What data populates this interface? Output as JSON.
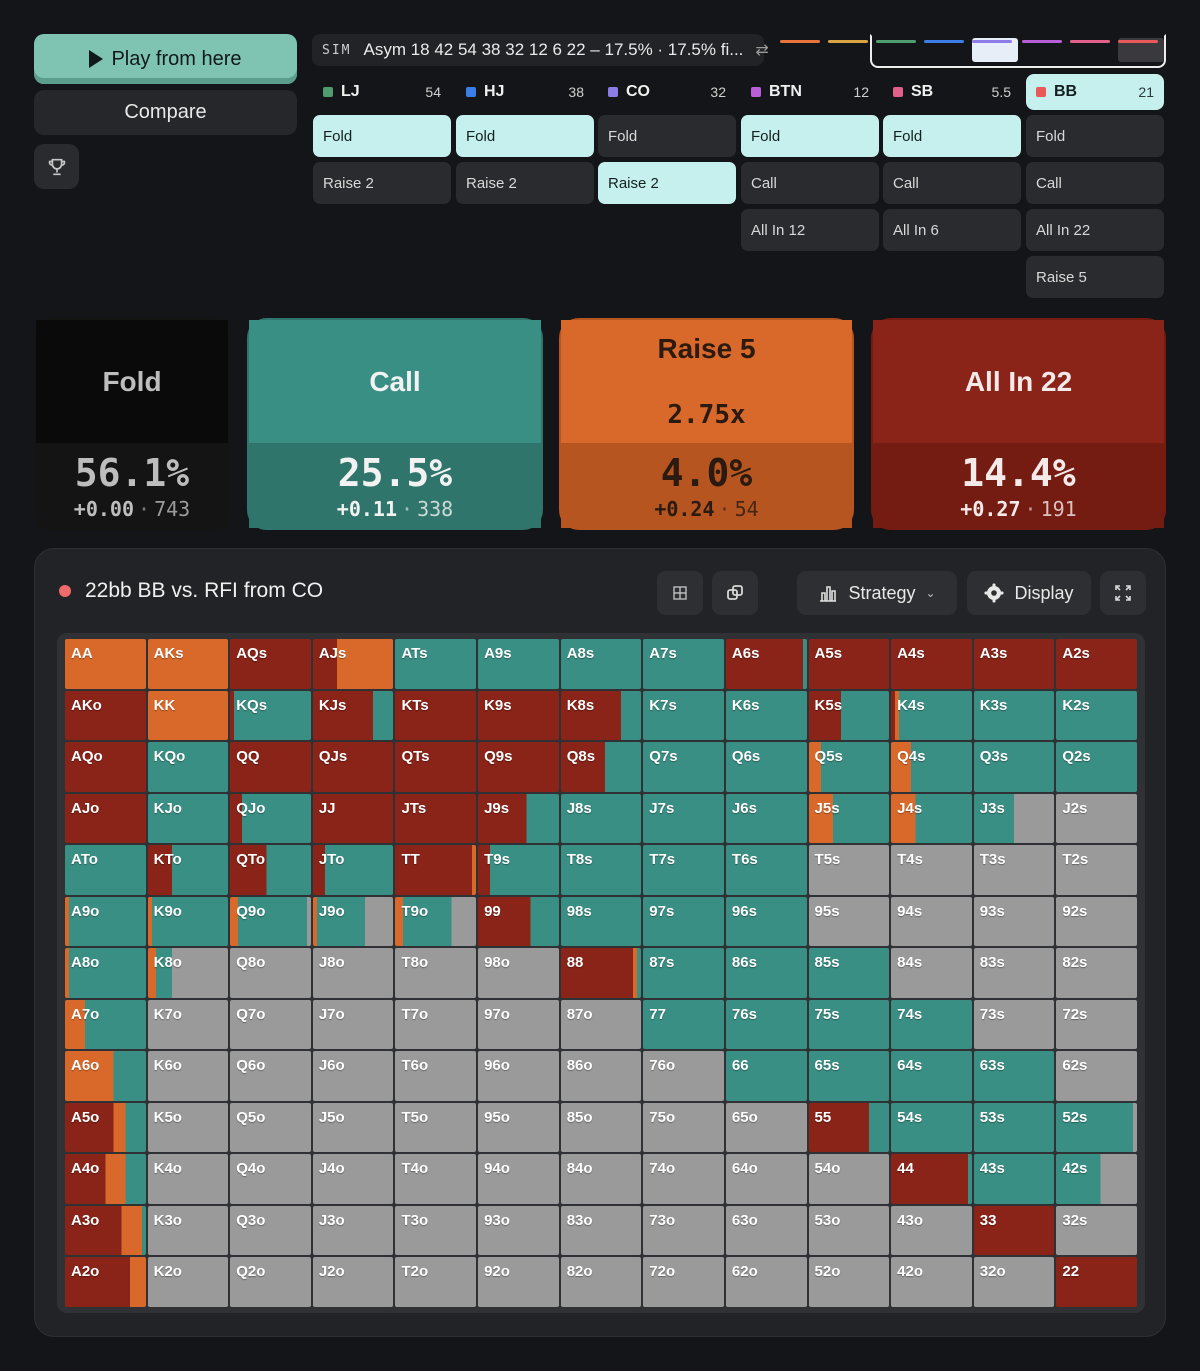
{
  "left": {
    "play_label": "Play from here",
    "compare_label": "Compare"
  },
  "sim": {
    "tag": "SIM",
    "text": "Asym 18 42 54 38 32 12 6 22 – 17.5% · 17.5% fi..."
  },
  "positions": [
    {
      "name": "LJ",
      "stack": "54",
      "color": "#4f9d6f",
      "active": false,
      "actions": [
        {
          "label": "Fold",
          "selected": true
        },
        {
          "label": "Raise 2",
          "selected": false
        }
      ]
    },
    {
      "name": "HJ",
      "stack": "38",
      "color": "#3b7ee6",
      "active": false,
      "actions": [
        {
          "label": "Fold",
          "selected": true
        },
        {
          "label": "Raise 2",
          "selected": false
        }
      ]
    },
    {
      "name": "CO",
      "stack": "32",
      "color": "#8d7ce8",
      "active": false,
      "actions": [
        {
          "label": "Fold",
          "selected": false
        },
        {
          "label": "Raise 2",
          "selected": true
        }
      ]
    },
    {
      "name": "BTN",
      "stack": "12",
      "color": "#b85fd8",
      "active": false,
      "actions": [
        {
          "label": "Fold",
          "selected": true
        },
        {
          "label": "Call",
          "selected": false
        },
        {
          "label": "All In 12",
          "selected": false
        }
      ]
    },
    {
      "name": "SB",
      "stack": "5.5",
      "color": "#e0608a",
      "active": false,
      "actions": [
        {
          "label": "Fold",
          "selected": true
        },
        {
          "label": "Call",
          "selected": false
        },
        {
          "label": "All In 6",
          "selected": false
        }
      ]
    },
    {
      "name": "BB",
      "stack": "21",
      "color": "#e85a5a",
      "active": true,
      "actions": [
        {
          "label": "Fold",
          "selected": false
        },
        {
          "label": "Call",
          "selected": false
        },
        {
          "label": "All In 22",
          "selected": false
        },
        {
          "label": "Raise 5",
          "selected": false
        }
      ]
    }
  ],
  "strip_colors": [
    "#e8743b",
    "#d9a441",
    "#4f9d6f",
    "#3b7ee6",
    "#8d7ce8",
    "#b85fd8",
    "#e0608a",
    "#e85a5a"
  ],
  "summary": [
    {
      "title": "Fold",
      "pct": "56.1%",
      "ev": "+0.00",
      "count": "743",
      "top_color": "#0a0a0a",
      "bottom_color": "#141414",
      "text_color": "#bdbdbd"
    },
    {
      "title": "Call",
      "pct": "25.5%",
      "ev": "+0.11",
      "count": "338",
      "top_color": "#3a8f84",
      "bottom_color": "#2f756c",
      "text_color": "#f2f2f2"
    },
    {
      "title": "Raise 5\n2.75x",
      "pct": "4.0%",
      "ev": "+0.24",
      "count": "54",
      "top_color": "#d9692a",
      "bottom_color": "#b65520",
      "text_color": "#2a1a10"
    },
    {
      "title": "All In 22",
      "pct": "14.4%",
      "ev": "+0.27",
      "count": "191",
      "top_color": "#8a2318",
      "bottom_color": "#751c12",
      "text_color": "#f5eaea"
    }
  ],
  "panel": {
    "title": "22bb BB vs. RFI from CO",
    "strategy_label": "Strategy",
    "display_label": "Display"
  },
  "colors": {
    "allin": "#8a2318",
    "raise": "#d9692a",
    "call": "#3a8f84",
    "fold": "#9a9a9a"
  },
  "matrix": {
    "hands": [
      [
        "AA",
        "AKs",
        "AQs",
        "AJs",
        "ATs",
        "A9s",
        "A8s",
        "A7s",
        "A6s",
        "A5s",
        "A4s",
        "A3s",
        "A2s"
      ],
      [
        "AKo",
        "KK",
        "KQs",
        "KJs",
        "KTs",
        "K9s",
        "K8s",
        "K7s",
        "K6s",
        "K5s",
        "K4s",
        "K3s",
        "K2s"
      ],
      [
        "AQo",
        "KQo",
        "QQ",
        "QJs",
        "QTs",
        "Q9s",
        "Q8s",
        "Q7s",
        "Q6s",
        "Q5s",
        "Q4s",
        "Q3s",
        "Q2s"
      ],
      [
        "AJo",
        "KJo",
        "QJo",
        "JJ",
        "JTs",
        "J9s",
        "J8s",
        "J7s",
        "J6s",
        "J5s",
        "J4s",
        "J3s",
        "J2s"
      ],
      [
        "ATo",
        "KTo",
        "QTo",
        "JTo",
        "TT",
        "T9s",
        "T8s",
        "T7s",
        "T6s",
        "T5s",
        "T4s",
        "T3s",
        "T2s"
      ],
      [
        "A9o",
        "K9o",
        "Q9o",
        "J9o",
        "T9o",
        "99",
        "98s",
        "97s",
        "96s",
        "95s",
        "94s",
        "93s",
        "92s"
      ],
      [
        "A8o",
        "K8o",
        "Q8o",
        "J8o",
        "T8o",
        "98o",
        "88",
        "87s",
        "86s",
        "85s",
        "84s",
        "83s",
        "82s"
      ],
      [
        "A7o",
        "K7o",
        "Q7o",
        "J7o",
        "T7o",
        "97o",
        "87o",
        "77",
        "76s",
        "75s",
        "74s",
        "73s",
        "72s"
      ],
      [
        "A6o",
        "K6o",
        "Q6o",
        "J6o",
        "T6o",
        "96o",
        "86o",
        "76o",
        "66",
        "65s",
        "64s",
        "63s",
        "62s"
      ],
      [
        "A5o",
        "K5o",
        "Q5o",
        "J5o",
        "T5o",
        "95o",
        "85o",
        "75o",
        "65o",
        "55",
        "54s",
        "53s",
        "52s"
      ],
      [
        "A4o",
        "K4o",
        "Q4o",
        "J4o",
        "T4o",
        "94o",
        "84o",
        "74o",
        "64o",
        "54o",
        "44",
        "43s",
        "42s"
      ],
      [
        "A3o",
        "K3o",
        "Q3o",
        "J3o",
        "T3o",
        "93o",
        "83o",
        "73o",
        "63o",
        "53o",
        "43o",
        "33",
        "32s"
      ],
      [
        "A2o",
        "K2o",
        "Q2o",
        "J2o",
        "T2o",
        "92o",
        "82o",
        "72o",
        "62o",
        "52o",
        "42o",
        "32o",
        "22"
      ]
    ],
    "mix_order": [
      "allin",
      "raise",
      "call",
      "fold"
    ],
    "mixes": [
      [
        [
          0,
          1,
          0,
          0
        ],
        [
          0,
          1,
          0,
          0
        ],
        [
          1,
          0,
          0,
          0
        ],
        [
          0.3,
          0.7,
          0,
          0
        ],
        [
          0,
          0,
          1,
          0
        ],
        [
          0,
          0,
          1,
          0
        ],
        [
          0,
          0,
          1,
          0
        ],
        [
          0,
          0,
          1,
          0
        ],
        [
          0.95,
          0,
          0.05,
          0
        ],
        [
          1,
          0,
          0,
          0
        ],
        [
          1,
          0,
          0,
          0
        ],
        [
          1,
          0,
          0,
          0
        ],
        [
          1,
          0,
          0,
          0
        ]
      ],
      [
        [
          1,
          0,
          0,
          0
        ],
        [
          0,
          1,
          0,
          0
        ],
        [
          0.05,
          0,
          0.95,
          0
        ],
        [
          0.75,
          0,
          0.25,
          0
        ],
        [
          1,
          0,
          0,
          0
        ],
        [
          1,
          0,
          0,
          0
        ],
        [
          0.75,
          0,
          0.25,
          0
        ],
        [
          0,
          0,
          1,
          0
        ],
        [
          0,
          0,
          1,
          0
        ],
        [
          0.4,
          0,
          0.6,
          0
        ],
        [
          0.05,
          0.05,
          0.9,
          0
        ],
        [
          0,
          0,
          1,
          0
        ],
        [
          0,
          0,
          1,
          0
        ]
      ],
      [
        [
          1,
          0,
          0,
          0
        ],
        [
          0,
          0,
          1,
          0
        ],
        [
          1,
          0,
          0,
          0
        ],
        [
          1,
          0,
          0,
          0
        ],
        [
          1,
          0,
          0,
          0
        ],
        [
          1,
          0,
          0,
          0
        ],
        [
          0.55,
          0,
          0.45,
          0
        ],
        [
          0,
          0,
          1,
          0
        ],
        [
          0,
          0,
          1,
          0
        ],
        [
          0,
          0.15,
          0.85,
          0
        ],
        [
          0,
          0.25,
          0.75,
          0
        ],
        [
          0,
          0,
          1,
          0
        ],
        [
          0,
          0,
          1,
          0
        ]
      ],
      [
        [
          1,
          0,
          0,
          0
        ],
        [
          0,
          0,
          1,
          0
        ],
        [
          0.15,
          0,
          0.85,
          0
        ],
        [
          1,
          0,
          0,
          0
        ],
        [
          1,
          0,
          0,
          0
        ],
        [
          0.6,
          0,
          0.4,
          0
        ],
        [
          0,
          0,
          1,
          0
        ],
        [
          0,
          0,
          1,
          0
        ],
        [
          0,
          0,
          1,
          0
        ],
        [
          0,
          0.3,
          0.7,
          0
        ],
        [
          0,
          0.3,
          0.7,
          0
        ],
        [
          0,
          0,
          0.5,
          0.5
        ],
        [
          0,
          0,
          0,
          1
        ]
      ],
      [
        [
          0,
          0,
          1,
          0
        ],
        [
          0.3,
          0,
          0.7,
          0
        ],
        [
          0.45,
          0,
          0.55,
          0
        ],
        [
          0.15,
          0,
          0.85,
          0
        ],
        [
          0.95,
          0.05,
          0,
          0
        ],
        [
          0.15,
          0,
          0.85,
          0
        ],
        [
          0,
          0,
          1,
          0
        ],
        [
          0,
          0,
          1,
          0
        ],
        [
          0,
          0,
          1,
          0
        ],
        [
          0,
          0,
          0,
          1
        ],
        [
          0,
          0,
          0,
          1
        ],
        [
          0,
          0,
          0,
          1
        ],
        [
          0,
          0,
          0,
          1
        ]
      ],
      [
        [
          0,
          0.05,
          0.95,
          0
        ],
        [
          0,
          0.05,
          0.95,
          0
        ],
        [
          0,
          0.1,
          0.85,
          0.05
        ],
        [
          0,
          0.05,
          0.6,
          0.35
        ],
        [
          0,
          0.1,
          0.6,
          0.3
        ],
        [
          0.65,
          0,
          0.35,
          0
        ],
        [
          0,
          0,
          1,
          0
        ],
        [
          0,
          0,
          1,
          0
        ],
        [
          0,
          0,
          1,
          0
        ],
        [
          0,
          0,
          0,
          1
        ],
        [
          0,
          0,
          0,
          1
        ],
        [
          0,
          0,
          0,
          1
        ],
        [
          0,
          0,
          0,
          1
        ]
      ],
      [
        [
          0,
          0.05,
          0.95,
          0
        ],
        [
          0,
          0.1,
          0.2,
          0.7
        ],
        [
          0,
          0,
          0,
          1
        ],
        [
          0,
          0,
          0,
          1
        ],
        [
          0,
          0,
          0,
          1
        ],
        [
          0,
          0,
          0,
          1
        ],
        [
          0.9,
          0.05,
          0.05,
          0
        ],
        [
          0,
          0,
          1,
          0
        ],
        [
          0,
          0,
          1,
          0
        ],
        [
          0,
          0,
          1,
          0
        ],
        [
          0,
          0,
          0,
          1
        ],
        [
          0,
          0,
          0,
          1
        ],
        [
          0,
          0,
          0,
          1
        ]
      ],
      [
        [
          0,
          0.25,
          0.75,
          0
        ],
        [
          0,
          0,
          0,
          1
        ],
        [
          0,
          0,
          0,
          1
        ],
        [
          0,
          0,
          0,
          1
        ],
        [
          0,
          0,
          0,
          1
        ],
        [
          0,
          0,
          0,
          1
        ],
        [
          0,
          0,
          0,
          1
        ],
        [
          0,
          0,
          1,
          0
        ],
        [
          0,
          0,
          1,
          0
        ],
        [
          0,
          0,
          1,
          0
        ],
        [
          0,
          0,
          1,
          0
        ],
        [
          0,
          0,
          0,
          1
        ],
        [
          0,
          0,
          0,
          1
        ]
      ],
      [
        [
          0,
          0.6,
          0.4,
          0
        ],
        [
          0,
          0,
          0,
          1
        ],
        [
          0,
          0,
          0,
          1
        ],
        [
          0,
          0,
          0,
          1
        ],
        [
          0,
          0,
          0,
          1
        ],
        [
          0,
          0,
          0,
          1
        ],
        [
          0,
          0,
          0,
          1
        ],
        [
          0,
          0,
          0,
          1
        ],
        [
          0,
          0,
          1,
          0
        ],
        [
          0,
          0,
          1,
          0
        ],
        [
          0,
          0,
          1,
          0
        ],
        [
          0,
          0,
          1,
          0
        ],
        [
          0,
          0,
          0,
          1
        ]
      ],
      [
        [
          0.6,
          0.15,
          0.25,
          0
        ],
        [
          0,
          0,
          0,
          1
        ],
        [
          0,
          0,
          0,
          1
        ],
        [
          0,
          0,
          0,
          1
        ],
        [
          0,
          0,
          0,
          1
        ],
        [
          0,
          0,
          0,
          1
        ],
        [
          0,
          0,
          0,
          1
        ],
        [
          0,
          0,
          0,
          1
        ],
        [
          0,
          0,
          0,
          1
        ],
        [
          0.75,
          0,
          0.25,
          0
        ],
        [
          0,
          0,
          1,
          0
        ],
        [
          0,
          0,
          1,
          0
        ],
        [
          0,
          0,
          0.95,
          0.05
        ]
      ],
      [
        [
          0.5,
          0.25,
          0.25,
          0
        ],
        [
          0,
          0,
          0,
          1
        ],
        [
          0,
          0,
          0,
          1
        ],
        [
          0,
          0,
          0,
          1
        ],
        [
          0,
          0,
          0,
          1
        ],
        [
          0,
          0,
          0,
          1
        ],
        [
          0,
          0,
          0,
          1
        ],
        [
          0,
          0,
          0,
          1
        ],
        [
          0,
          0,
          0,
          1
        ],
        [
          0,
          0,
          0,
          1
        ],
        [
          0.95,
          0,
          0.05,
          0
        ],
        [
          0,
          0,
          1,
          0
        ],
        [
          0,
          0,
          0.55,
          0.45
        ]
      ],
      [
        [
          0.7,
          0.25,
          0.05,
          0
        ],
        [
          0,
          0,
          0,
          1
        ],
        [
          0,
          0,
          0,
          1
        ],
        [
          0,
          0,
          0,
          1
        ],
        [
          0,
          0,
          0,
          1
        ],
        [
          0,
          0,
          0,
          1
        ],
        [
          0,
          0,
          0,
          1
        ],
        [
          0,
          0,
          0,
          1
        ],
        [
          0,
          0,
          0,
          1
        ],
        [
          0,
          0,
          0,
          1
        ],
        [
          0,
          0,
          0,
          1
        ],
        [
          1,
          0,
          0,
          0
        ],
        [
          0,
          0,
          0,
          1
        ]
      ],
      [
        [
          0.8,
          0.2,
          0,
          0
        ],
        [
          0,
          0,
          0,
          1
        ],
        [
          0,
          0,
          0,
          1
        ],
        [
          0,
          0,
          0,
          1
        ],
        [
          0,
          0,
          0,
          1
        ],
        [
          0,
          0,
          0,
          1
        ],
        [
          0,
          0,
          0,
          1
        ],
        [
          0,
          0,
          0,
          1
        ],
        [
          0,
          0,
          0,
          1
        ],
        [
          0,
          0,
          0,
          1
        ],
        [
          0,
          0,
          0,
          1
        ],
        [
          0,
          0,
          0,
          1
        ],
        [
          1,
          0,
          0,
          0
        ]
      ]
    ]
  }
}
